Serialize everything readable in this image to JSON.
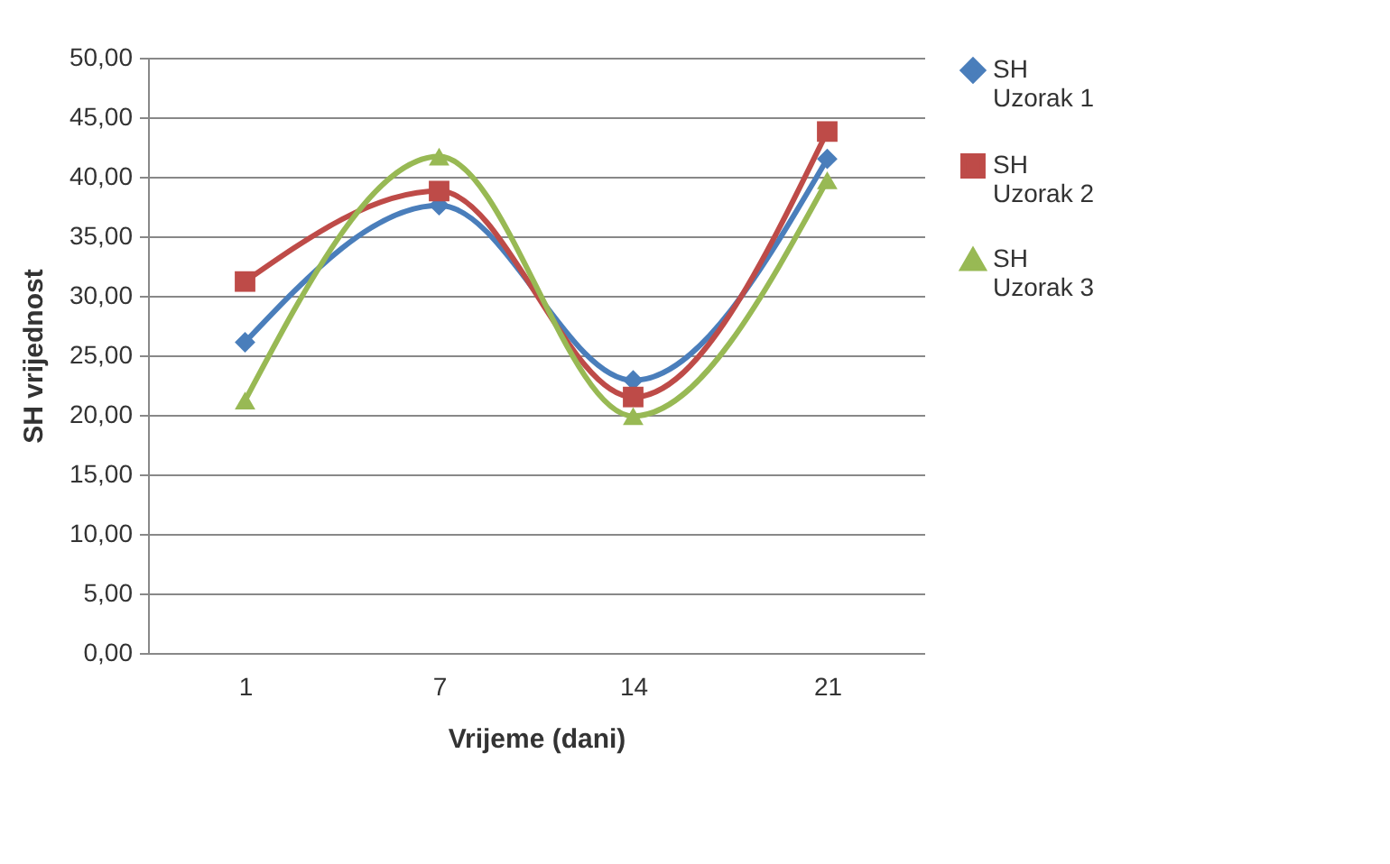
{
  "chart_data": {
    "type": "line",
    "xlabel": "Vrijeme (dani)",
    "ylabel": "SH vrijednost",
    "categories": [
      "1",
      "7",
      "14",
      "21"
    ],
    "series": [
      {
        "name": "SH Uzorak 1",
        "color": "#4a7ebb",
        "marker": "diamond",
        "values": [
          26.1,
          37.6,
          22.9,
          41.5
        ]
      },
      {
        "name": "SH Uzorak 2",
        "color": "#be4b48",
        "marker": "square",
        "values": [
          31.2,
          38.8,
          21.5,
          43.8
        ]
      },
      {
        "name": "SH Uzorak 3",
        "color": "#98b954",
        "marker": "triangle",
        "values": [
          21.2,
          41.7,
          19.9,
          39.7
        ]
      }
    ],
    "ylim": [
      0,
      50
    ],
    "yticks": [
      {
        "value": 0,
        "label": "0,00"
      },
      {
        "value": 5,
        "label": "5,00"
      },
      {
        "value": 10,
        "label": "10,00"
      },
      {
        "value": 15,
        "label": "15,00"
      },
      {
        "value": 20,
        "label": "20,00"
      },
      {
        "value": 25,
        "label": "25,00"
      },
      {
        "value": 30,
        "label": "30,00"
      },
      {
        "value": 35,
        "label": "35,00"
      },
      {
        "value": 40,
        "label": "40,00"
      },
      {
        "value": 45,
        "label": "45,00"
      },
      {
        "value": 50,
        "label": "50,00"
      }
    ],
    "grid": "y",
    "legend": "right",
    "line_style": "solid"
  }
}
